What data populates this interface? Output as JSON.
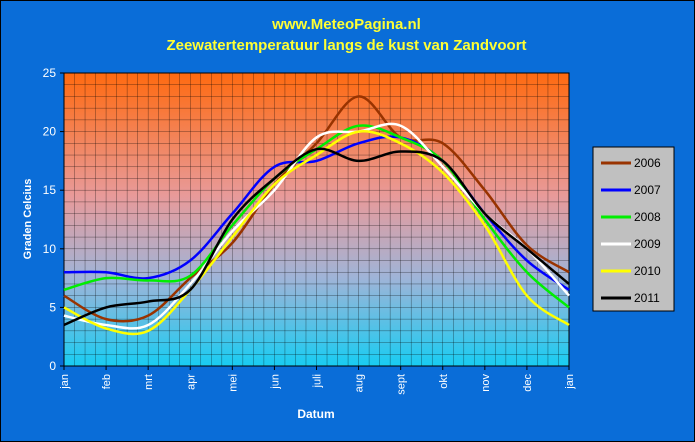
{
  "chart_data": {
    "type": "line",
    "title": "www.MeteoPagina.nl",
    "subtitle": "Zeewatertemperatuur langs de kust van Zandvoort",
    "xlabel": "Datum",
    "ylabel": "Graden Celcius",
    "ylim": [
      0,
      25
    ],
    "yticks": [
      "0",
      "5",
      "10",
      "15",
      "20",
      "25"
    ],
    "categories": [
      "jan",
      "feb",
      "mrt",
      "apr",
      "mei",
      "jun",
      "juli",
      "aug",
      "sept",
      "okt",
      "nov",
      "dec",
      "jan"
    ],
    "grid": true,
    "legend_position": "right",
    "background": "gradient orange (top) to light blue (bottom)",
    "series": [
      {
        "name": "2006",
        "color": "#993300",
        "values": [
          6.0,
          4.0,
          4.3,
          7.5,
          10.5,
          15.5,
          19.0,
          23.0,
          19.5,
          19.0,
          15.0,
          10.3,
          8.0
        ]
      },
      {
        "name": "2007",
        "color": "#0000ff",
        "values": [
          8.0,
          8.0,
          7.5,
          9.0,
          13.0,
          17.0,
          17.5,
          19.0,
          19.5,
          17.5,
          13.0,
          9.0,
          6.5
        ]
      },
      {
        "name": "2008",
        "color": "#00ee00",
        "values": [
          6.5,
          7.5,
          7.3,
          7.7,
          12.0,
          16.0,
          18.5,
          20.5,
          19.5,
          17.5,
          12.5,
          8.0,
          5.0
        ]
      },
      {
        "name": "2009",
        "color": "#ffffff",
        "values": [
          4.3,
          3.5,
          3.5,
          7.0,
          11.5,
          15.0,
          19.5,
          20.0,
          20.5,
          17.0,
          13.0,
          10.0,
          6.0
        ]
      },
      {
        "name": "2010",
        "color": "#ffff00",
        "values": [
          5.0,
          3.2,
          3.0,
          6.5,
          11.0,
          15.5,
          18.0,
          20.0,
          19.0,
          16.5,
          12.0,
          6.0,
          3.5
        ]
      },
      {
        "name": "2011",
        "color": "#000000",
        "values": [
          3.5,
          5.0,
          5.5,
          6.5,
          12.5,
          16.0,
          18.5,
          17.5,
          18.3,
          17.5,
          13.0,
          10.0,
          7.0
        ]
      }
    ]
  }
}
